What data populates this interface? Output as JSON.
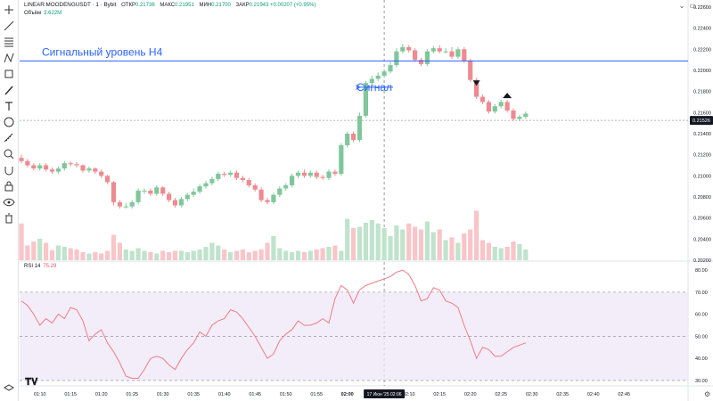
{
  "header": {
    "symbol": "LINEAR:MOODENGUSDT · 1 · Bybit",
    "open_label": "ОТКР",
    "open": "0.21736",
    "high_label": "МАКС",
    "high": "0.21951",
    "low_label": "МИН",
    "low": "0.21700",
    "close_label": "ЗАКР",
    "close": "0.21943",
    "change": "+0.00207 (+0.95%)",
    "volume_label": "Объём",
    "volume": "3.622M"
  },
  "rsi_header": {
    "label": "RSI 14",
    "value": "75.29"
  },
  "annotations": {
    "level_text": "Сигнальный уровень H4",
    "signal_text": "Сигнал"
  },
  "colors": {
    "up": "#7fc79b",
    "down": "#ee8a90",
    "level": "#2962ff",
    "rsi": "#f07c84"
  },
  "chart_data": [
    {
      "type": "candlestick",
      "x": [
        "01:07",
        "01:08",
        "01:09",
        "01:10",
        "01:11",
        "01:12",
        "01:13",
        "01:14",
        "01:15",
        "01:16",
        "01:17",
        "01:18",
        "01:19",
        "01:20",
        "01:21",
        "01:22",
        "01:23",
        "01:24",
        "01:25",
        "01:26",
        "01:27",
        "01:28",
        "01:29",
        "01:30",
        "01:31",
        "01:32",
        "01:33",
        "01:34",
        "01:35",
        "01:36",
        "01:37",
        "01:38",
        "01:39",
        "01:40",
        "01:41",
        "01:42",
        "01:43",
        "01:44",
        "01:45",
        "01:46",
        "01:47",
        "01:48",
        "01:49",
        "01:50",
        "01:51",
        "01:52",
        "01:53",
        "01:54",
        "01:55",
        "01:56",
        "01:57",
        "01:58",
        "01:59",
        "02:00",
        "02:01",
        "02:02",
        "02:03",
        "02:04",
        "02:05",
        "02:06",
        "02:07",
        "02:08",
        "02:09",
        "02:10",
        "02:11",
        "02:12",
        "02:13",
        "02:14",
        "02:15",
        "02:16",
        "02:17",
        "02:18",
        "02:19",
        "02:20",
        "02:21",
        "02:22",
        "02:23",
        "02:24",
        "02:25",
        "02:26",
        "02:27",
        "02:28",
        "02:29"
      ],
      "open": [
        0.2117,
        0.2114,
        0.211,
        0.2107,
        0.211,
        0.2106,
        0.2104,
        0.2107,
        0.2112,
        0.2111,
        0.211,
        0.2105,
        0.2107,
        0.2104,
        0.21,
        0.2094,
        0.2075,
        0.2071,
        0.2071,
        0.2075,
        0.2086,
        0.2086,
        0.2083,
        0.2089,
        0.2083,
        0.2077,
        0.2072,
        0.2078,
        0.2082,
        0.2085,
        0.209,
        0.2093,
        0.2097,
        0.2102,
        0.2101,
        0.2103,
        0.2098,
        0.2096,
        0.2091,
        0.2087,
        0.2077,
        0.2075,
        0.2082,
        0.2088,
        0.2091,
        0.21,
        0.2103,
        0.21,
        0.2103,
        0.2099,
        0.2098,
        0.2104,
        0.2102,
        0.2129,
        0.214,
        0.2134,
        0.2157,
        0.2188,
        0.2192,
        0.2195,
        0.2199,
        0.2205,
        0.2218,
        0.2222,
        0.2219,
        0.221,
        0.2206,
        0.2218,
        0.2221,
        0.2218,
        0.2218,
        0.2213,
        0.222,
        0.2209,
        0.2191,
        0.2175,
        0.217,
        0.2161,
        0.2166,
        0.217,
        0.2162,
        0.2154,
        0.2156
      ],
      "close": [
        0.2114,
        0.211,
        0.2107,
        0.211,
        0.2106,
        0.2104,
        0.2107,
        0.2112,
        0.2111,
        0.211,
        0.2105,
        0.2107,
        0.2104,
        0.21,
        0.2094,
        0.2075,
        0.2071,
        0.2071,
        0.2075,
        0.2086,
        0.2086,
        0.2083,
        0.2089,
        0.2083,
        0.2077,
        0.2072,
        0.2078,
        0.2082,
        0.2085,
        0.209,
        0.2093,
        0.2097,
        0.2102,
        0.2101,
        0.2103,
        0.2098,
        0.2096,
        0.2091,
        0.2087,
        0.2077,
        0.2075,
        0.2082,
        0.2088,
        0.2091,
        0.21,
        0.2103,
        0.21,
        0.2103,
        0.2099,
        0.2098,
        0.2104,
        0.2102,
        0.2129,
        0.214,
        0.2134,
        0.2157,
        0.2188,
        0.2192,
        0.2195,
        0.2199,
        0.2205,
        0.2218,
        0.2222,
        0.2219,
        0.221,
        0.2206,
        0.2218,
        0.2221,
        0.2218,
        0.2218,
        0.2213,
        0.222,
        0.2209,
        0.2191,
        0.2175,
        0.217,
        0.2161,
        0.2166,
        0.217,
        0.2162,
        0.2154,
        0.2156,
        0.2159
      ],
      "high": [
        0.212,
        0.2116,
        0.2112,
        0.2112,
        0.2112,
        0.2108,
        0.2109,
        0.2114,
        0.2114,
        0.2113,
        0.2111,
        0.2109,
        0.2108,
        0.2106,
        0.2101,
        0.2095,
        0.2077,
        0.2074,
        0.2077,
        0.2088,
        0.2088,
        0.2088,
        0.2091,
        0.209,
        0.2085,
        0.2079,
        0.208,
        0.2084,
        0.2088,
        0.2092,
        0.2095,
        0.2099,
        0.2104,
        0.2104,
        0.2105,
        0.2105,
        0.21,
        0.2098,
        0.2093,
        0.2089,
        0.2079,
        0.2084,
        0.209,
        0.2093,
        0.2102,
        0.2105,
        0.2106,
        0.2105,
        0.2105,
        0.2101,
        0.2106,
        0.2106,
        0.2131,
        0.2142,
        0.2142,
        0.216,
        0.219,
        0.2195,
        0.2198,
        0.2201,
        0.2208,
        0.2221,
        0.2225,
        0.2224,
        0.2221,
        0.2212,
        0.222,
        0.2223,
        0.2224,
        0.2221,
        0.2222,
        0.2222,
        0.2222,
        0.2211,
        0.2193,
        0.2177,
        0.2172,
        0.2168,
        0.2172,
        0.2172,
        0.2164,
        0.2158,
        0.2161
      ],
      "low": [
        0.2112,
        0.2108,
        0.2105,
        0.2105,
        0.2104,
        0.2102,
        0.2102,
        0.2105,
        0.2109,
        0.2108,
        0.2103,
        0.2103,
        0.2102,
        0.2098,
        0.2092,
        0.2072,
        0.2069,
        0.2069,
        0.2069,
        0.2073,
        0.2083,
        0.2081,
        0.2081,
        0.2081,
        0.2075,
        0.207,
        0.207,
        0.2076,
        0.208,
        0.2083,
        0.2088,
        0.2091,
        0.2095,
        0.2099,
        0.2099,
        0.2096,
        0.2094,
        0.2089,
        0.2085,
        0.2075,
        0.2073,
        0.2073,
        0.208,
        0.2086,
        0.2089,
        0.2098,
        0.2098,
        0.2098,
        0.2097,
        0.2096,
        0.2096,
        0.21,
        0.21,
        0.2127,
        0.2132,
        0.2132,
        0.2155,
        0.2186,
        0.219,
        0.2193,
        0.2197,
        0.2203,
        0.2216,
        0.2217,
        0.2208,
        0.2204,
        0.2204,
        0.2216,
        0.2216,
        0.2216,
        0.2211,
        0.2211,
        0.2207,
        0.2189,
        0.2173,
        0.2168,
        0.2159,
        0.2159,
        0.2164,
        0.216,
        0.2152,
        0.2152,
        0.2154
      ],
      "volume": [
        0.55,
        0.22,
        0.28,
        0.32,
        0.26,
        0.15,
        0.22,
        0.2,
        0.18,
        0.16,
        0.12,
        0.1,
        0.12,
        0.1,
        0.14,
        0.38,
        0.26,
        0.16,
        0.14,
        0.18,
        0.14,
        0.12,
        0.1,
        0.14,
        0.12,
        0.14,
        0.14,
        0.12,
        0.14,
        0.16,
        0.2,
        0.26,
        0.22,
        0.16,
        0.12,
        0.14,
        0.16,
        0.12,
        0.14,
        0.16,
        0.26,
        0.36,
        0.18,
        0.14,
        0.12,
        0.14,
        0.12,
        0.14,
        0.16,
        0.18,
        0.2,
        0.22,
        0.14,
        0.62,
        0.48,
        0.5,
        0.56,
        0.6,
        0.55,
        0.48,
        0.36,
        0.52,
        0.46,
        0.55,
        0.5,
        0.46,
        0.58,
        0.42,
        0.46,
        0.3,
        0.34,
        0.26,
        0.4,
        0.46,
        0.74,
        0.3,
        0.26,
        0.2,
        0.18,
        0.2,
        0.28,
        0.24,
        0.16
      ],
      "ylim": [
        0.202,
        0.226
      ],
      "y_ticks": [
        "0.22600",
        "0.22400",
        "0.22200",
        "0.22000",
        "0.21800",
        "0.21600",
        "0.21400",
        "0.21200",
        "0.21000",
        "0.20800",
        "0.20600",
        "0.20400",
        "0.20200"
      ],
      "last_price": "0.21526",
      "level": 0.2209,
      "x_ticks": [
        "01:10",
        "01:15",
        "01:20",
        "01:25",
        "01:30",
        "01:35",
        "01:40",
        "01:45",
        "01:50",
        "01:55",
        "02:00",
        "02:10",
        "02:15",
        "02:20",
        "02:25",
        "02:30",
        "02:35",
        "02:40",
        "02:45"
      ],
      "crosshair_label": "17 Июн '25 02:06",
      "signal_up_marker": "02:26",
      "signal_down_marker": "02:21"
    },
    {
      "type": "line",
      "name": "RSI 14",
      "ylim": [
        30,
        80
      ],
      "y_ticks": [
        "80.00",
        "70.00",
        "60.00",
        "50.00",
        "40.00",
        "30.00"
      ],
      "bands": [
        70,
        50,
        30
      ],
      "x": [
        "01:07",
        "01:08",
        "01:09",
        "01:10",
        "01:11",
        "01:12",
        "01:13",
        "01:14",
        "01:15",
        "01:16",
        "01:17",
        "01:18",
        "01:19",
        "01:20",
        "01:21",
        "01:22",
        "01:23",
        "01:24",
        "01:25",
        "01:26",
        "01:27",
        "01:28",
        "01:29",
        "01:30",
        "01:31",
        "01:32",
        "01:33",
        "01:34",
        "01:35",
        "01:36",
        "01:37",
        "01:38",
        "01:39",
        "01:40",
        "01:41",
        "01:42",
        "01:43",
        "01:44",
        "01:45",
        "01:46",
        "01:47",
        "01:48",
        "01:49",
        "01:50",
        "01:51",
        "01:52",
        "01:53",
        "01:54",
        "01:55",
        "01:56",
        "01:57",
        "01:58",
        "01:59",
        "02:00",
        "02:01",
        "02:02",
        "02:03",
        "02:04",
        "02:05",
        "02:06",
        "02:07",
        "02:08",
        "02:09",
        "02:10",
        "02:11",
        "02:12",
        "02:13",
        "02:14",
        "02:15",
        "02:16",
        "02:17",
        "02:18",
        "02:19",
        "02:20",
        "02:21",
        "02:22",
        "02:23",
        "02:24",
        "02:25",
        "02:26",
        "02:27",
        "02:28",
        "02:29"
      ],
      "values": [
        66,
        64,
        60,
        55,
        58,
        56,
        60,
        58,
        63,
        62,
        57,
        48,
        51,
        53,
        47,
        43,
        38,
        32,
        31,
        31,
        35,
        40,
        41,
        40,
        37,
        35,
        40,
        44,
        47,
        52,
        50,
        55,
        57,
        58,
        62,
        61,
        58,
        54,
        50,
        45,
        40,
        42,
        48,
        51,
        53,
        57,
        55,
        55,
        56,
        58,
        56,
        67,
        73,
        71,
        65,
        71,
        73,
        74,
        75,
        76,
        77,
        79,
        80,
        78,
        73,
        66,
        67,
        72,
        71,
        66,
        65,
        63,
        55,
        48,
        40,
        45,
        44,
        41,
        41,
        43,
        45,
        46,
        47
      ]
    }
  ]
}
